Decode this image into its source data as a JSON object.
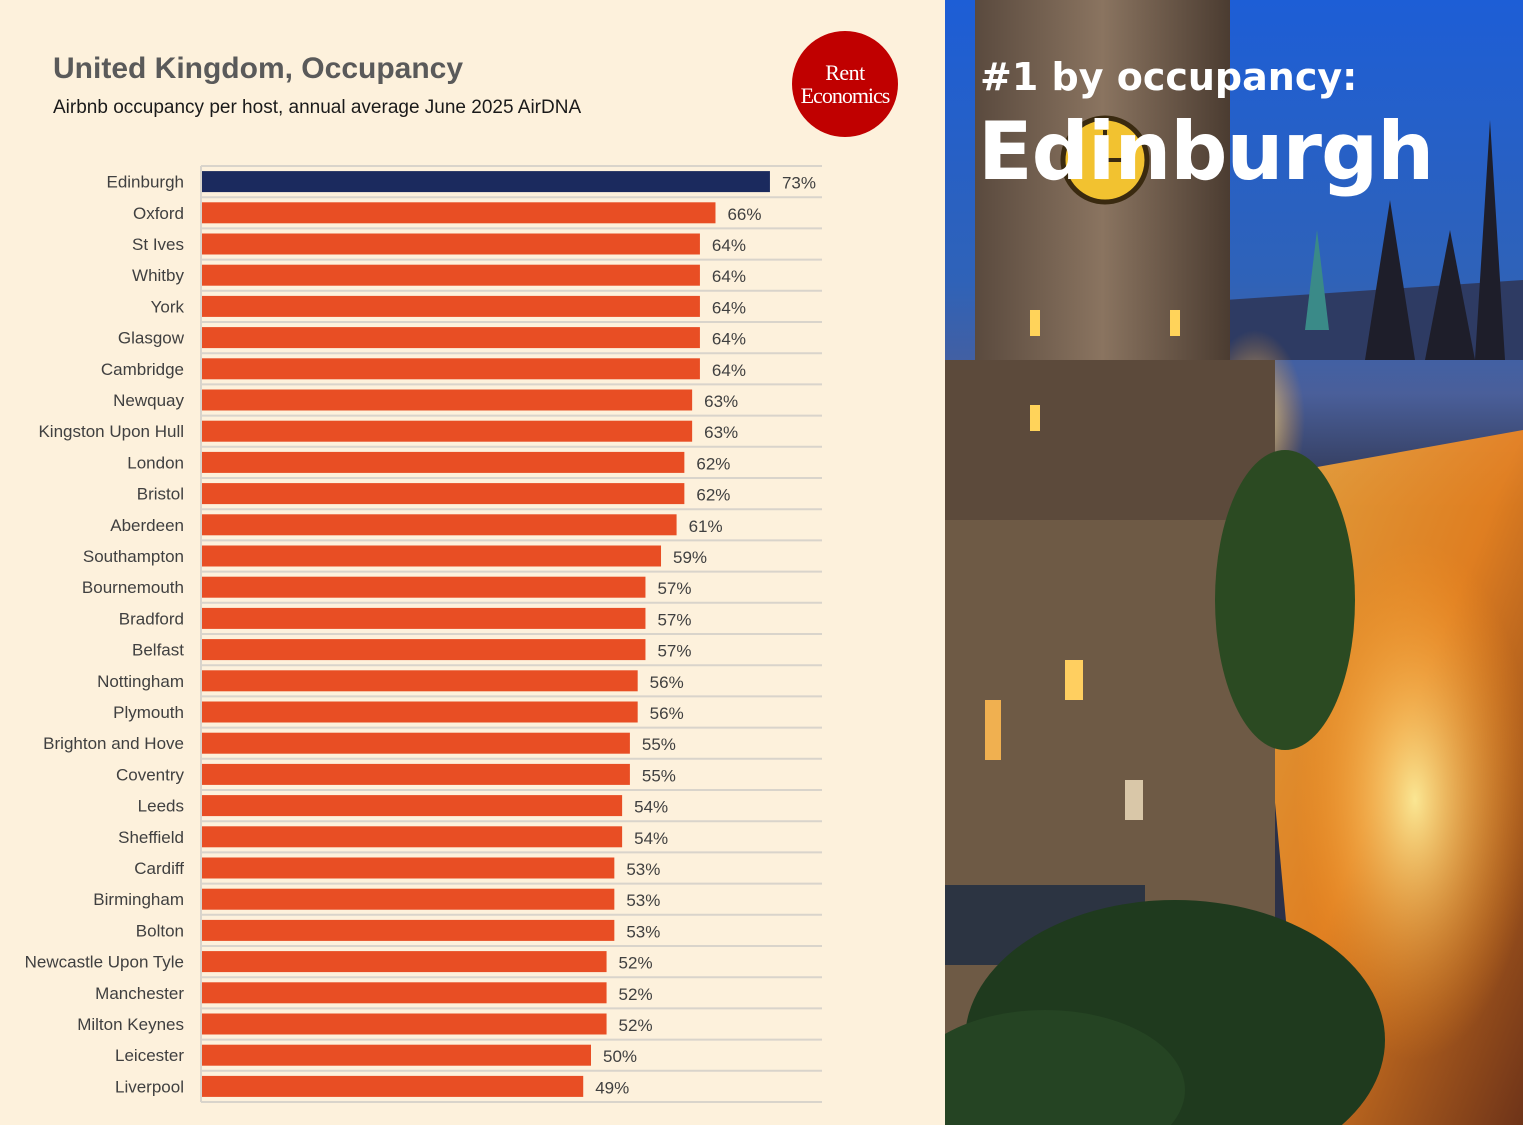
{
  "header": {
    "title": "United Kingdom, Occupancy",
    "subtitle": "Airbnb occupancy per host, annual average June 2025 AirDNA"
  },
  "logo": {
    "line1": "Rent",
    "line2": "Economics"
  },
  "photo": {
    "headline": "#1 by occupancy:",
    "city": "Edinburgh"
  },
  "colors": {
    "highlight": "#1b2a5e",
    "bar": "#e84e24",
    "logo": "#c00000",
    "background": "#fdf1dc"
  },
  "chart_data": {
    "type": "bar",
    "orientation": "horizontal",
    "categories": [
      "Edinburgh",
      "Oxford",
      "St Ives",
      "Whitby",
      "York",
      "Glasgow",
      "Cambridge",
      "Newquay",
      "Kingston Upon Hull",
      "London",
      "Bristol",
      "Aberdeen",
      "Southampton",
      "Bournemouth",
      "Bradford",
      "Belfast",
      "Nottingham",
      "Plymouth",
      "Brighton and Hove",
      "Coventry",
      "Leeds",
      "Sheffield",
      "Cardiff",
      "Birmingham",
      "Bolton",
      "Newcastle Upon Tyle",
      "Manchester",
      "Milton Keynes",
      "Leicester",
      "Liverpool"
    ],
    "values": [
      73,
      66,
      64,
      64,
      64,
      64,
      64,
      63,
      63,
      62,
      62,
      61,
      59,
      57,
      57,
      57,
      56,
      56,
      55,
      55,
      54,
      54,
      53,
      53,
      53,
      52,
      52,
      52,
      50,
      49
    ],
    "labels": [
      "73%",
      "66%",
      "64%",
      "64%",
      "64%",
      "64%",
      "64%",
      "63%",
      "63%",
      "62%",
      "62%",
      "61%",
      "59%",
      "57%",
      "57%",
      "57%",
      "56%",
      "56%",
      "55%",
      "55%",
      "54%",
      "54%",
      "53%",
      "53%",
      "53%",
      "52%",
      "52%",
      "52%",
      "50%",
      "49%"
    ],
    "highlight_category": "Edinburgh",
    "unit": "%",
    "grid": true,
    "legend": "none"
  }
}
